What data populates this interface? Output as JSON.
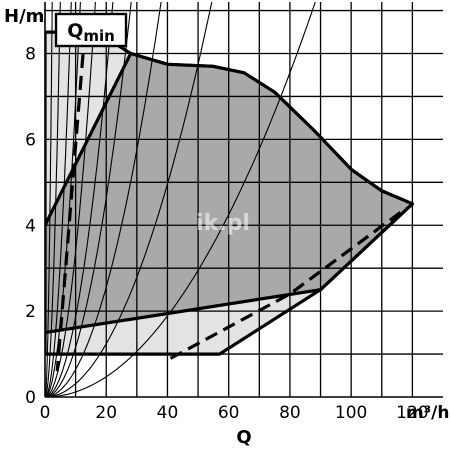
{
  "chart_data": {
    "type": "area",
    "ylabel": "H/m",
    "xlabel": "Q",
    "xunit": "m³/h",
    "x_ticks": [
      "0",
      "20",
      "40",
      "60",
      "80",
      "100",
      "120"
    ],
    "y_ticks": [
      "0",
      "2",
      "4",
      "6",
      "8"
    ],
    "xlim": [
      0,
      130
    ],
    "ylim": [
      0,
      9.2
    ],
    "grid": true,
    "qmin_label": "Qmin",
    "qmin_main": "Q",
    "qmin_sub": "min",
    "watermark": "ik.pl",
    "colors": {
      "outer_area": "#e3e3e3",
      "inner_area": "#a9a9a9",
      "line": "#000000"
    },
    "outer_area": [
      [
        0,
        8.5
      ],
      [
        17,
        8.5
      ],
      [
        28,
        8.0
      ],
      [
        40,
        7.75
      ],
      [
        55,
        7.7
      ],
      [
        65,
        7.55
      ],
      [
        75,
        7.1
      ],
      [
        88,
        6.2
      ],
      [
        100,
        5.3
      ],
      [
        110,
        4.8
      ],
      [
        120,
        4.5
      ],
      [
        90,
        2.5
      ],
      [
        57,
        1.0
      ],
      [
        0,
        1.0
      ]
    ],
    "inner_area": [
      [
        0,
        4.0
      ],
      [
        28,
        8.0
      ],
      [
        40,
        7.75
      ],
      [
        55,
        7.7
      ],
      [
        65,
        7.55
      ],
      [
        75,
        7.1
      ],
      [
        88,
        6.2
      ],
      [
        100,
        5.3
      ],
      [
        110,
        4.8
      ],
      [
        120,
        4.5
      ],
      [
        90,
        2.5
      ],
      [
        0,
        1.5
      ]
    ],
    "qmin_line": [
      [
        13,
        8.5
      ],
      [
        4,
        0.6
      ]
    ],
    "limit_dashed": [
      [
        41,
        0.9
      ],
      [
        80,
        2.4
      ],
      [
        118,
        4.4
      ]
    ],
    "system_curves_k": [
      1.667,
      0.37,
      0.125,
      0.069,
      0.0339,
      0.0187,
      0.0116,
      0.0064,
      0.0031,
      0.00118
    ]
  }
}
